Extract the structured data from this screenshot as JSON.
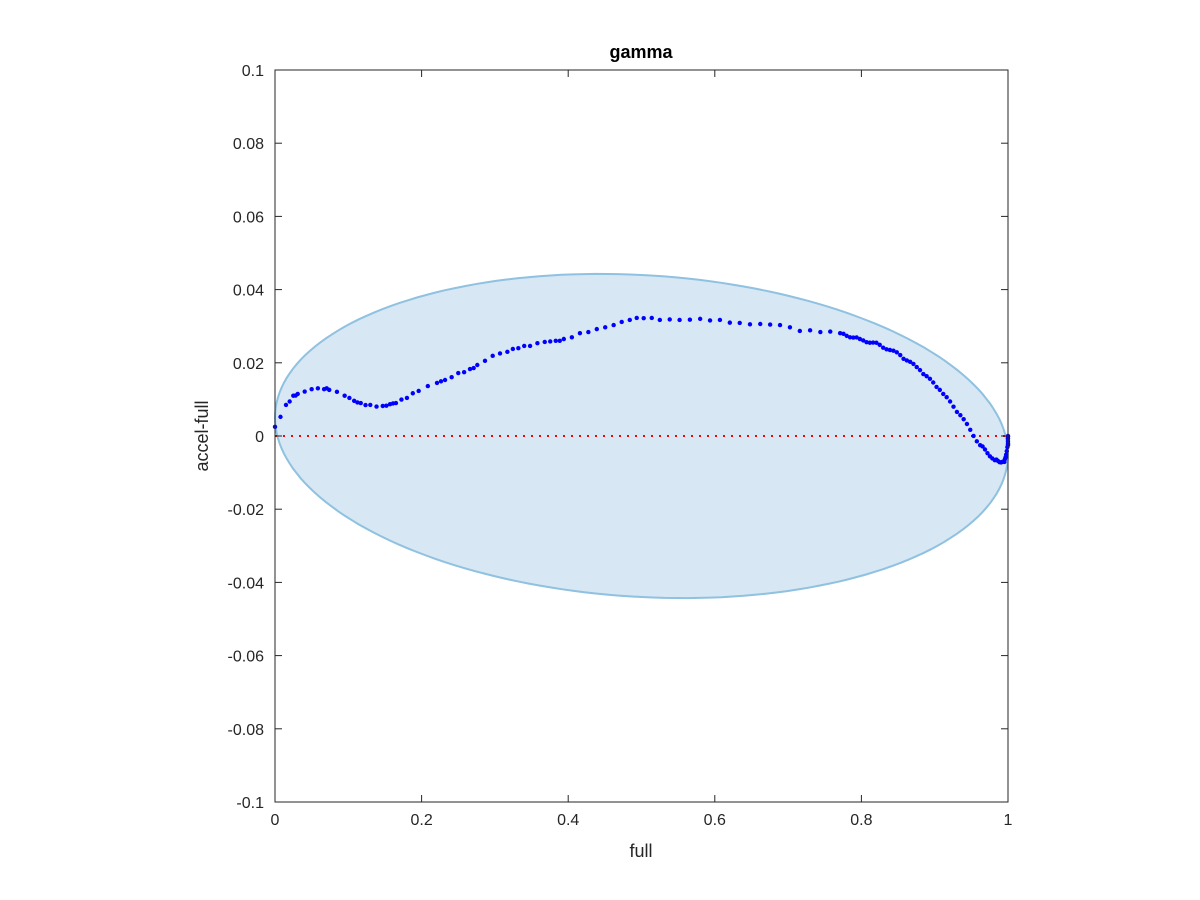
{
  "chart_data": {
    "type": "scatter",
    "title": "gamma",
    "xlabel": "full",
    "ylabel": "accel-full",
    "xlim": [
      0,
      1
    ],
    "ylim": [
      -0.1,
      0.1
    ],
    "xticks": [
      "0",
      "0.2",
      "0.4",
      "0.6",
      "0.8",
      "1"
    ],
    "xtick_values": [
      0,
      0.2,
      0.4,
      0.6,
      0.8,
      1
    ],
    "yticks": [
      "-0.1",
      "-0.08",
      "-0.06",
      "-0.04",
      "-0.02",
      "0",
      "0.02",
      "0.04",
      "0.06",
      "0.08",
      "0.1"
    ],
    "ytick_values": [
      -0.1,
      -0.08,
      -0.06,
      -0.04,
      -0.02,
      0,
      0.02,
      0.04,
      0.06,
      0.08,
      0.1
    ],
    "grid": false,
    "colors": {
      "points": "#0000ff",
      "reference_line": "#ff0000",
      "ellipse_fill": "#d7e7f3",
      "ellipse_edge": "#8fc1e0"
    },
    "reference_line": {
      "y": 0,
      "style": "dotted"
    },
    "ellipse": {
      "center": [
        0.5,
        0
      ],
      "semi_x": 0.5,
      "semi_y": 0.044,
      "shear_y": -0.005
    },
    "series": [
      {
        "name": "accel-full",
        "x": [
          0,
          0.015,
          0.025,
          0.031,
          0.05,
          0.067,
          0.074,
          0.095,
          0.108,
          0.117,
          0.13,
          0.147,
          0.157,
          0.165,
          0.18,
          0.196,
          0.221,
          0.232,
          0.25,
          0.266,
          0.276,
          0.297,
          0.317,
          0.332,
          0.348,
          0.368,
          0.383,
          0.394,
          0.416,
          0.439,
          0.462,
          0.484,
          0.503,
          0.525,
          0.552,
          0.58,
          0.607,
          0.634,
          0.662,
          0.689,
          0.716,
          0.744,
          0.771,
          0.798,
          0.825,
          0.853,
          0.88,
          0.907,
          0.935,
          0.962,
          0.982,
          0.995,
          1.0,
          1.0
        ],
        "y": [
          0.0025,
          0.0085,
          0.011,
          0.0115,
          0.0128,
          0.0128,
          0.0126,
          0.011,
          0.0096,
          0.009,
          0.0085,
          0.0082,
          0.0087,
          0.009,
          0.0104,
          0.0123,
          0.0145,
          0.0153,
          0.0172,
          0.0183,
          0.0194,
          0.0219,
          0.023,
          0.024,
          0.0246,
          0.0257,
          0.026,
          0.0265,
          0.0281,
          0.0292,
          0.0303,
          0.0317,
          0.0322,
          0.0317,
          0.0317,
          0.032,
          0.0317,
          0.0309,
          0.0306,
          0.0303,
          0.0287,
          0.0284,
          0.0281,
          0.0265,
          0.0249,
          0.0221,
          0.018,
          0.0126,
          0.0057,
          -0.0025,
          -0.0066,
          -0.0071,
          -0.0025,
          0
        ]
      }
    ]
  }
}
